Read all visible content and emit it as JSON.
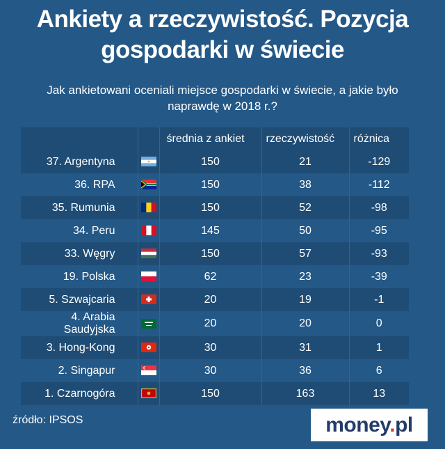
{
  "title_line1": "Ankiety a rzeczywistość. Pozycja",
  "title_line2": "gospodarki w świecie",
  "subtitle_line1": "Jak ankietowani oceniali miejsce gospodarki w świecie, a jakie było",
  "subtitle_line2": "naprawdę w 2018 r.?",
  "headers": {
    "survey": "średnia z ankiet",
    "reality": "rzeczywistość",
    "difference": "różnica"
  },
  "rows": [
    {
      "country": "37. Argentyna",
      "flag": "argentina-flag-icon",
      "survey": "150",
      "reality": "21",
      "difference": "-129"
    },
    {
      "country": "36. RPA",
      "flag": "south-africa-flag-icon",
      "survey": "150",
      "reality": "38",
      "difference": "-112"
    },
    {
      "country": "35. Rumunia",
      "flag": "romania-flag-icon",
      "survey": "150",
      "reality": "52",
      "difference": "-98"
    },
    {
      "country": "34. Peru",
      "flag": "peru-flag-icon",
      "survey": "145",
      "reality": "50",
      "difference": "-95"
    },
    {
      "country": "33. Węgry",
      "flag": "hungary-flag-icon",
      "survey": "150",
      "reality": "57",
      "difference": "-93"
    },
    {
      "country": "19. Polska",
      "flag": "poland-flag-icon",
      "survey": "62",
      "reality": "23",
      "difference": "-39"
    },
    {
      "country": "5. Szwajcaria",
      "flag": "switzerland-flag-icon",
      "survey": "20",
      "reality": "19",
      "difference": "-1"
    },
    {
      "country": "4. Arabia Saudyjska",
      "flag": "saudi-arabia-flag-icon",
      "survey": "20",
      "reality": "20",
      "difference": "0"
    },
    {
      "country": "3. Hong-Kong",
      "flag": "hong-kong-flag-icon",
      "survey": "30",
      "reality": "31",
      "difference": "1"
    },
    {
      "country": "2. Singapur",
      "flag": "singapore-flag-icon",
      "survey": "30",
      "reality": "36",
      "difference": "6"
    },
    {
      "country": "1. Czarnogóra",
      "flag": "montenegro-flag-icon",
      "survey": "150",
      "reality": "163",
      "difference": "13"
    }
  ],
  "source": "źródło: IPSOS",
  "logo": {
    "word": "money",
    "dot": ".",
    "tld": "pl"
  },
  "colors": {
    "background": "#245887",
    "row_dark": "#1f4c75",
    "logo_text": "#233c6a",
    "logo_dot": "#e03a2e"
  }
}
